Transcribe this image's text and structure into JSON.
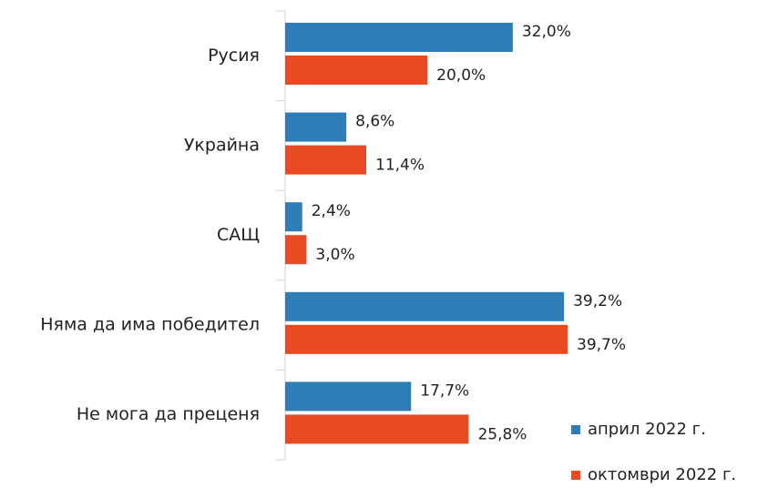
{
  "chart_data": {
    "type": "hbar",
    "categories": [
      "Русия",
      "Украйна",
      "САЩ",
      "Няма да има победител",
      "Не мога да преценя"
    ],
    "series": [
      {
        "name": "април 2022 г.",
        "color": "#2e7db6",
        "values": [
          32.0,
          8.6,
          2.4,
          39.2,
          17.7
        ],
        "value_labels": [
          "32,0%",
          "8,6%",
          "2,4%",
          "39,2%",
          "17,7%"
        ]
      },
      {
        "name": "октомври 2022 г.",
        "color": "#e84a22",
        "values": [
          20.0,
          11.4,
          3.0,
          39.7,
          25.8
        ],
        "value_labels": [
          "20,0%",
          "11,4%",
          "3,0%",
          "39,7%",
          "25,8%"
        ]
      }
    ],
    "legend": "bottom-right"
  }
}
